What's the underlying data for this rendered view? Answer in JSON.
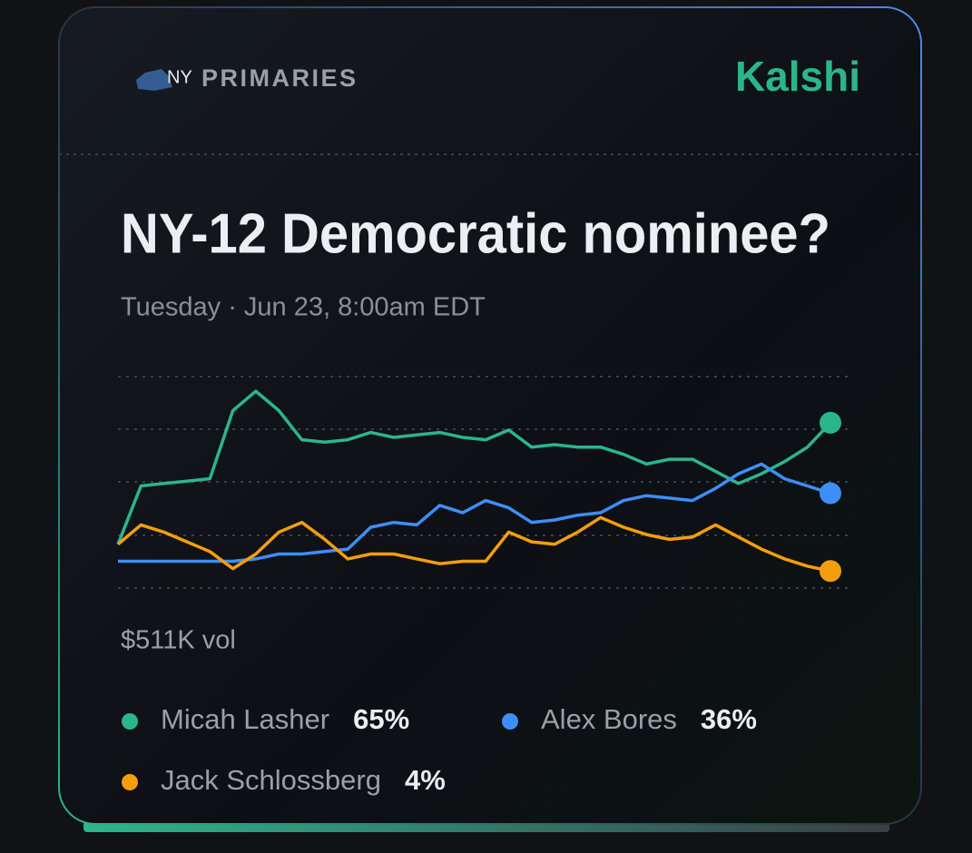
{
  "header": {
    "badge": "NY",
    "label": "PRIMARIES",
    "brand": "Kalshi"
  },
  "chart_data": {
    "type": "line",
    "title": "NY-12 Democratic nominee?",
    "subtitle": "Tuesday · Jun 23, 8:00am EDT",
    "annotation": "$511K vol",
    "ylim": [
      -3,
      84
    ],
    "series": [
      {
        "name": "Micah Lasher",
        "color": "#2bb68a",
        "value_label": "65%",
        "values": [
          15,
          39,
          40,
          41,
          42,
          70,
          78,
          70,
          58,
          57,
          58,
          61,
          59,
          60,
          61,
          59,
          58,
          62,
          55,
          56,
          55,
          55,
          52,
          48,
          50,
          50,
          45,
          40,
          44,
          49,
          55,
          65
        ]
      },
      {
        "name": "Alex Bores",
        "color": "#3d8ef7",
        "value_label": "36%",
        "values": [
          8,
          8,
          8,
          8,
          8,
          8,
          9,
          11,
          11,
          12,
          13,
          22,
          24,
          23,
          31,
          28,
          33,
          30,
          24,
          25,
          27,
          28,
          33,
          35,
          34,
          33,
          38,
          44,
          48,
          42,
          39,
          36
        ]
      },
      {
        "name": "Jack Schlossberg",
        "color": "#f59e0b",
        "value_label": "4%",
        "values": [
          15,
          23,
          20,
          16,
          12,
          5,
          11,
          20,
          24,
          17,
          9,
          11,
          11,
          9,
          7,
          8,
          8,
          20,
          16,
          15,
          20,
          26,
          22,
          19,
          17,
          18,
          23,
          18,
          13,
          9,
          6,
          4
        ]
      }
    ]
  }
}
